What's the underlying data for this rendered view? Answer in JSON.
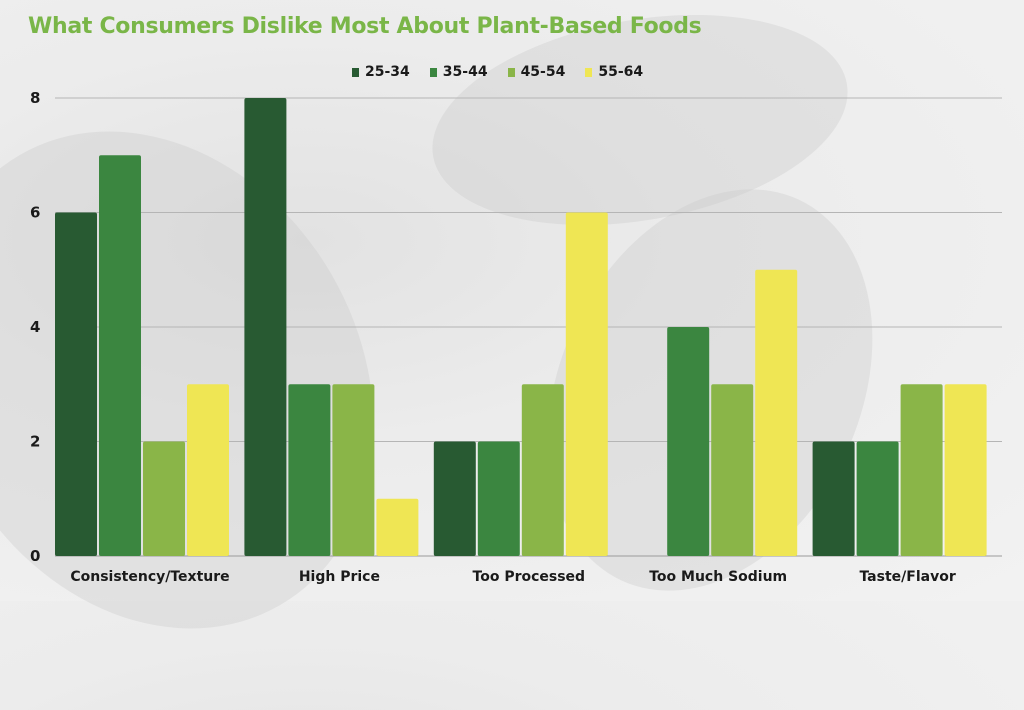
{
  "chart_data": {
    "type": "bar",
    "title": "What Consumers Dislike Most About Plant-Based Foods",
    "xlabel": "",
    "ylabel": "",
    "ylim": [
      0,
      8
    ],
    "yticks": [
      0,
      2,
      4,
      6,
      8
    ],
    "grid": true,
    "legend_position": "top-center",
    "categories": [
      "Consistency/Texture",
      "High Price",
      "Too Processed",
      "Too Much Sodium",
      "Taste/Flavor"
    ],
    "series": [
      {
        "name": "25-34",
        "color": "#285a32",
        "values": [
          6,
          8,
          2,
          0,
          2
        ]
      },
      {
        "name": "35-44",
        "color": "#3b8640",
        "values": [
          7,
          3,
          2,
          4,
          2
        ]
      },
      {
        "name": "45-54",
        "color": "#8ab548",
        "values": [
          2,
          3,
          3,
          3,
          3
        ]
      },
      {
        "name": "55-64",
        "color": "#efe654",
        "values": [
          3,
          1,
          6,
          5,
          3
        ]
      }
    ]
  }
}
